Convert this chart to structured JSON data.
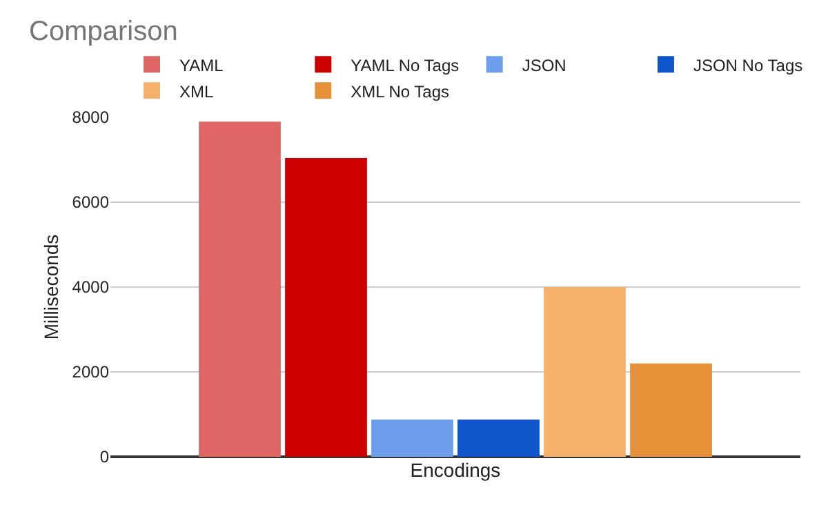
{
  "chart_data": {
    "type": "bar",
    "title": "Comparison",
    "xlabel": "Encodings",
    "ylabel": "Milliseconds",
    "categories": [
      null
    ],
    "series": [
      {
        "name": "YAML",
        "color": "#e06666",
        "values": [
          7900
        ]
      },
      {
        "name": "YAML No Tags",
        "color": "#cc0000",
        "values": [
          7040
        ]
      },
      {
        "name": "JSON",
        "color": "#6d9eeb",
        "values": [
          880
        ]
      },
      {
        "name": "JSON No Tags",
        "color": "#1155cc",
        "values": [
          880
        ]
      },
      {
        "name": "XML",
        "color": "#f6b26b",
        "values": [
          4000
        ]
      },
      {
        "name": "XML No Tags",
        "color": "#e69138",
        "values": [
          2200
        ]
      }
    ],
    "ylim": [
      0,
      8000
    ],
    "yticks": [
      0,
      2000,
      4000,
      6000,
      8000
    ],
    "grid": "y",
    "legend": "top"
  }
}
